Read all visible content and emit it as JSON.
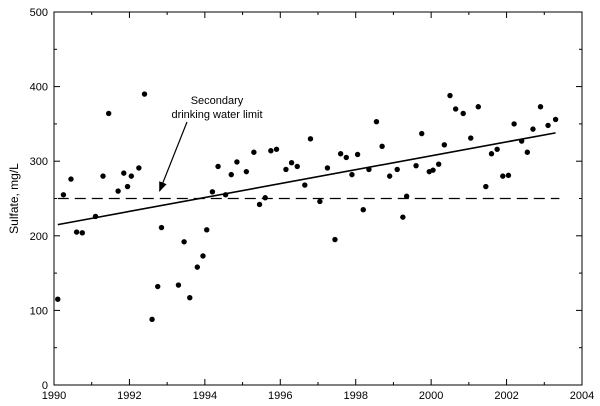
{
  "chart_data": {
    "type": "scatter",
    "title": "",
    "xlabel": "",
    "ylabel": "Sulfate, mg/L",
    "xlim": [
      1990,
      2004
    ],
    "ylim": [
      0,
      500
    ],
    "xticks": [
      1990,
      1992,
      1994,
      1996,
      1998,
      2000,
      2002,
      2004
    ],
    "yticks": [
      0,
      100,
      200,
      300,
      400,
      500
    ],
    "grid": false,
    "legend": "none",
    "points": [
      {
        "x": 1990.1,
        "y": 115
      },
      {
        "x": 1990.25,
        "y": 255
      },
      {
        "x": 1990.45,
        "y": 276
      },
      {
        "x": 1990.6,
        "y": 205
      },
      {
        "x": 1990.75,
        "y": 204
      },
      {
        "x": 1991.1,
        "y": 226
      },
      {
        "x": 1991.3,
        "y": 280
      },
      {
        "x": 1991.45,
        "y": 364
      },
      {
        "x": 1991.7,
        "y": 260
      },
      {
        "x": 1991.85,
        "y": 284
      },
      {
        "x": 1991.95,
        "y": 266
      },
      {
        "x": 1992.05,
        "y": 280
      },
      {
        "x": 1992.25,
        "y": 291
      },
      {
        "x": 1992.4,
        "y": 390
      },
      {
        "x": 1992.6,
        "y": 88
      },
      {
        "x": 1992.75,
        "y": 132
      },
      {
        "x": 1992.85,
        "y": 211
      },
      {
        "x": 1993.3,
        "y": 134
      },
      {
        "x": 1993.45,
        "y": 192
      },
      {
        "x": 1993.6,
        "y": 117
      },
      {
        "x": 1993.8,
        "y": 158
      },
      {
        "x": 1993.95,
        "y": 173
      },
      {
        "x": 1994.05,
        "y": 208
      },
      {
        "x": 1994.2,
        "y": 259
      },
      {
        "x": 1994.35,
        "y": 293
      },
      {
        "x": 1994.55,
        "y": 255
      },
      {
        "x": 1994.7,
        "y": 282
      },
      {
        "x": 1994.85,
        "y": 299
      },
      {
        "x": 1995.1,
        "y": 286
      },
      {
        "x": 1995.3,
        "y": 312
      },
      {
        "x": 1995.45,
        "y": 242
      },
      {
        "x": 1995.6,
        "y": 251
      },
      {
        "x": 1995.75,
        "y": 314
      },
      {
        "x": 1995.9,
        "y": 316
      },
      {
        "x": 1996.15,
        "y": 289
      },
      {
        "x": 1996.3,
        "y": 298
      },
      {
        "x": 1996.45,
        "y": 293
      },
      {
        "x": 1996.65,
        "y": 268
      },
      {
        "x": 1996.8,
        "y": 330
      },
      {
        "x": 1997.05,
        "y": 246
      },
      {
        "x": 1997.25,
        "y": 291
      },
      {
        "x": 1997.45,
        "y": 195
      },
      {
        "x": 1997.6,
        "y": 310
      },
      {
        "x": 1997.75,
        "y": 305
      },
      {
        "x": 1997.9,
        "y": 282
      },
      {
        "x": 1998.05,
        "y": 309
      },
      {
        "x": 1998.2,
        "y": 235
      },
      {
        "x": 1998.35,
        "y": 289
      },
      {
        "x": 1998.55,
        "y": 353
      },
      {
        "x": 1998.7,
        "y": 320
      },
      {
        "x": 1998.9,
        "y": 280
      },
      {
        "x": 1999.1,
        "y": 289
      },
      {
        "x": 1999.25,
        "y": 225
      },
      {
        "x": 1999.35,
        "y": 253
      },
      {
        "x": 1999.6,
        "y": 294
      },
      {
        "x": 1999.75,
        "y": 337
      },
      {
        "x": 1999.95,
        "y": 286
      },
      {
        "x": 2000.05,
        "y": 288
      },
      {
        "x": 2000.2,
        "y": 296
      },
      {
        "x": 2000.35,
        "y": 322
      },
      {
        "x": 2000.5,
        "y": 388
      },
      {
        "x": 2000.65,
        "y": 370
      },
      {
        "x": 2000.85,
        "y": 364
      },
      {
        "x": 2001.05,
        "y": 331
      },
      {
        "x": 2001.25,
        "y": 373
      },
      {
        "x": 2001.45,
        "y": 266
      },
      {
        "x": 2001.6,
        "y": 310
      },
      {
        "x": 2001.75,
        "y": 316
      },
      {
        "x": 2001.9,
        "y": 280
      },
      {
        "x": 2002.05,
        "y": 281
      },
      {
        "x": 2002.2,
        "y": 350
      },
      {
        "x": 2002.4,
        "y": 327
      },
      {
        "x": 2002.55,
        "y": 312
      },
      {
        "x": 2002.7,
        "y": 343
      },
      {
        "x": 2002.9,
        "y": 373
      },
      {
        "x": 2003.1,
        "y": 348
      },
      {
        "x": 2003.3,
        "y": 356
      }
    ],
    "trend_line": {
      "x": [
        1990.1,
        2003.3
      ],
      "y": [
        215,
        338
      ]
    },
    "reference_line": {
      "y": 250,
      "x": [
        1990.1,
        2003.4
      ],
      "style": "dashed"
    },
    "annotation": {
      "lines": [
        "Secondary",
        "drinking water limit"
      ],
      "arrow_target": {
        "x": 1992.8,
        "y": 252
      }
    }
  }
}
